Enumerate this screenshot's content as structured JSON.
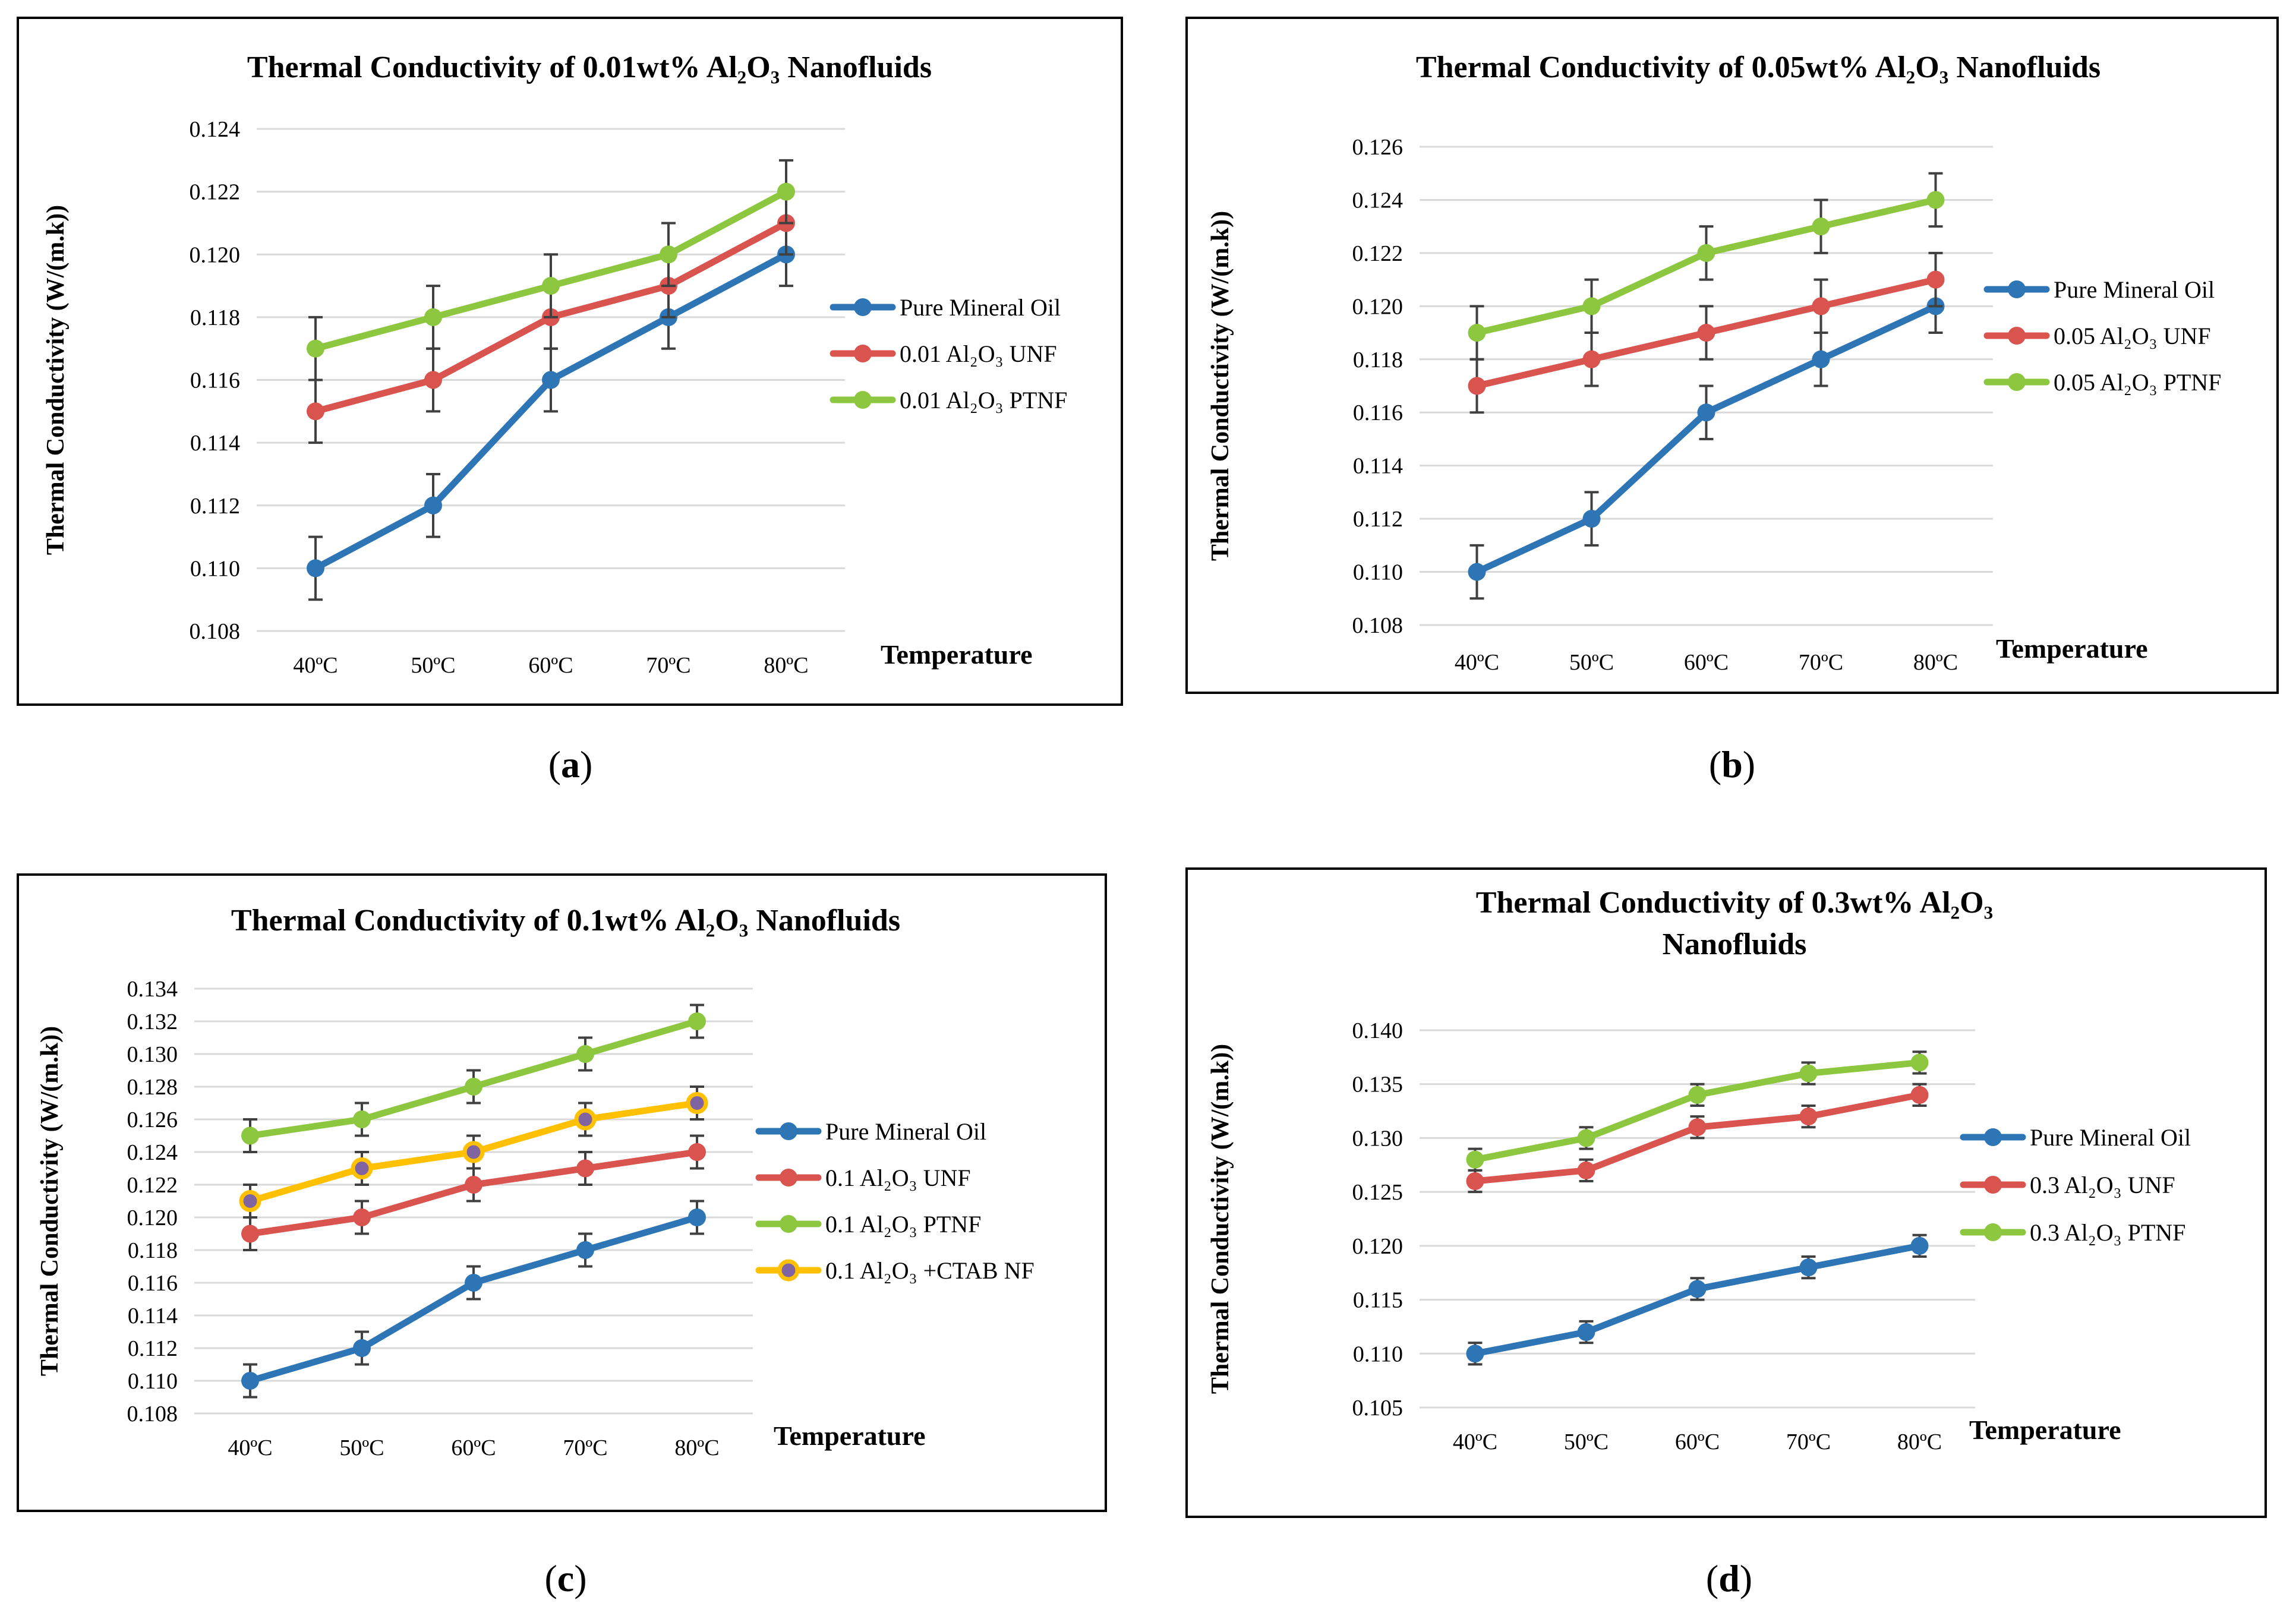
{
  "colors": {
    "blue": "#2E75B6",
    "red": "#D9534F",
    "green": "#8DC63F",
    "yellow": "#FFC000",
    "purple": "#8064A2",
    "grid": "#D9D9D9",
    "err": "#404040"
  },
  "captions": [
    "a",
    "b",
    "c",
    "d"
  ],
  "chart_data": [
    {
      "type": "line",
      "title": "Thermal Conductivity of 0.01wt% Al₂O₃ Nanofluids",
      "title_lines": [
        "Thermal Conductivity of 0.01wt% Al₂O₃ Nanofluids"
      ],
      "xlabel": "Temperature",
      "ylabel": "Thermal Conductivity (W/(m.k))",
      "categories": [
        "40ºC",
        "50ºC",
        "60ºC",
        "70ºC",
        "80ºC"
      ],
      "ylim": [
        0.108,
        0.124
      ],
      "yticks": [
        "0.108",
        "0.110",
        "0.112",
        "0.114",
        "0.116",
        "0.118",
        "0.120",
        "0.122",
        "0.124"
      ],
      "error": 0.001,
      "legend_position": "right",
      "series": [
        {
          "name": "Pure Mineral Oil",
          "color": "blue",
          "values": [
            0.11,
            0.112,
            0.116,
            0.118,
            0.12
          ]
        },
        {
          "name": "0.01 Al₂O₃ UNF",
          "color": "red",
          "values": [
            0.115,
            0.116,
            0.118,
            0.119,
            0.121
          ]
        },
        {
          "name": "0.01 Al₂O₃ PTNF",
          "color": "green",
          "values": [
            0.117,
            0.118,
            0.119,
            0.12,
            0.122
          ]
        }
      ]
    },
    {
      "type": "line",
      "title": "Thermal Conductivity of 0.05wt% Al₂O₃ Nanofluids",
      "title_lines": [
        "Thermal Conductivity of 0.05wt% Al₂O₃ Nanofluids"
      ],
      "xlabel": "Temperature",
      "ylabel": "Thermal Conductivity (W/(m.k))",
      "categories": [
        "40ºC",
        "50ºC",
        "60ºC",
        "70ºC",
        "80ºC"
      ],
      "ylim": [
        0.108,
        0.126
      ],
      "yticks": [
        "0.108",
        "0.110",
        "0.112",
        "0.114",
        "0.116",
        "0.118",
        "0.120",
        "0.122",
        "0.124",
        "0.126"
      ],
      "error": 0.001,
      "legend_position": "right",
      "series": [
        {
          "name": "Pure Mineral Oil",
          "color": "blue",
          "values": [
            0.11,
            0.112,
            0.116,
            0.118,
            0.12
          ]
        },
        {
          "name": "0.05 Al₂O₃ UNF",
          "color": "red",
          "values": [
            0.117,
            0.118,
            0.119,
            0.12,
            0.121
          ]
        },
        {
          "name": "0.05 Al₂O₃ PTNF",
          "color": "green",
          "values": [
            0.119,
            0.12,
            0.122,
            0.123,
            0.124
          ]
        }
      ]
    },
    {
      "type": "line",
      "title": "Thermal Conductivity of 0.1wt% Al₂O₃ Nanofluids",
      "title_lines": [
        "Thermal Conductivity of 0.1wt% Al₂O₃ Nanofluids"
      ],
      "xlabel": "Temperature",
      "ylabel": "Thermal Conductivity (W/(m.k))",
      "categories": [
        "40ºC",
        "50ºC",
        "60ºC",
        "70ºC",
        "80ºC"
      ],
      "ylim": [
        0.108,
        0.134
      ],
      "yticks": [
        "0.108",
        "0.110",
        "0.112",
        "0.114",
        "0.116",
        "0.118",
        "0.120",
        "0.122",
        "0.124",
        "0.126",
        "0.128",
        "0.130",
        "0.132",
        "0.134"
      ],
      "error": 0.001,
      "legend_position": "right",
      "series": [
        {
          "name": "Pure Mineral Oil",
          "color": "blue",
          "values": [
            0.11,
            0.112,
            0.116,
            0.118,
            0.12
          ]
        },
        {
          "name": "0.1 Al₂O₃ UNF",
          "color": "red",
          "values": [
            0.119,
            0.12,
            0.122,
            0.123,
            0.124
          ]
        },
        {
          "name": "0.1 Al₂O₃ PTNF",
          "color": "green",
          "values": [
            0.125,
            0.126,
            0.128,
            0.13,
            0.132
          ]
        },
        {
          "name": "0.1 Al₂O₃ +CTAB NF",
          "color": "yellow",
          "marker_fill": "purple",
          "values": [
            0.121,
            0.123,
            0.124,
            0.126,
            0.127
          ]
        }
      ]
    },
    {
      "type": "line",
      "title": "Thermal Conductivity of 0.3wt% Al₂O₃ Nanofluids",
      "title_lines": [
        "Thermal Conductivity of 0.3wt% Al₂O₃",
        "Nanofluids"
      ],
      "xlabel": "Temperature",
      "ylabel": "Thermal Conductivity (W/(m.k))",
      "categories": [
        "40ºC",
        "50ºC",
        "60ºC",
        "70ºC",
        "80ºC"
      ],
      "ylim": [
        0.105,
        0.14
      ],
      "yticks": [
        "0.105",
        "0.110",
        "0.115",
        "0.120",
        "0.125",
        "0.130",
        "0.135",
        "0.140"
      ],
      "error": 0.001,
      "legend_position": "right",
      "series": [
        {
          "name": "Pure Mineral Oil",
          "color": "blue",
          "values": [
            0.11,
            0.112,
            0.116,
            0.118,
            0.12
          ]
        },
        {
          "name": "0.3 Al₂O₃ UNF",
          "color": "red",
          "values": [
            0.126,
            0.127,
            0.131,
            0.132,
            0.134
          ]
        },
        {
          "name": "0.3 Al₂O₃ PTNF",
          "color": "green",
          "values": [
            0.128,
            0.13,
            0.134,
            0.136,
            0.137
          ]
        }
      ]
    }
  ]
}
